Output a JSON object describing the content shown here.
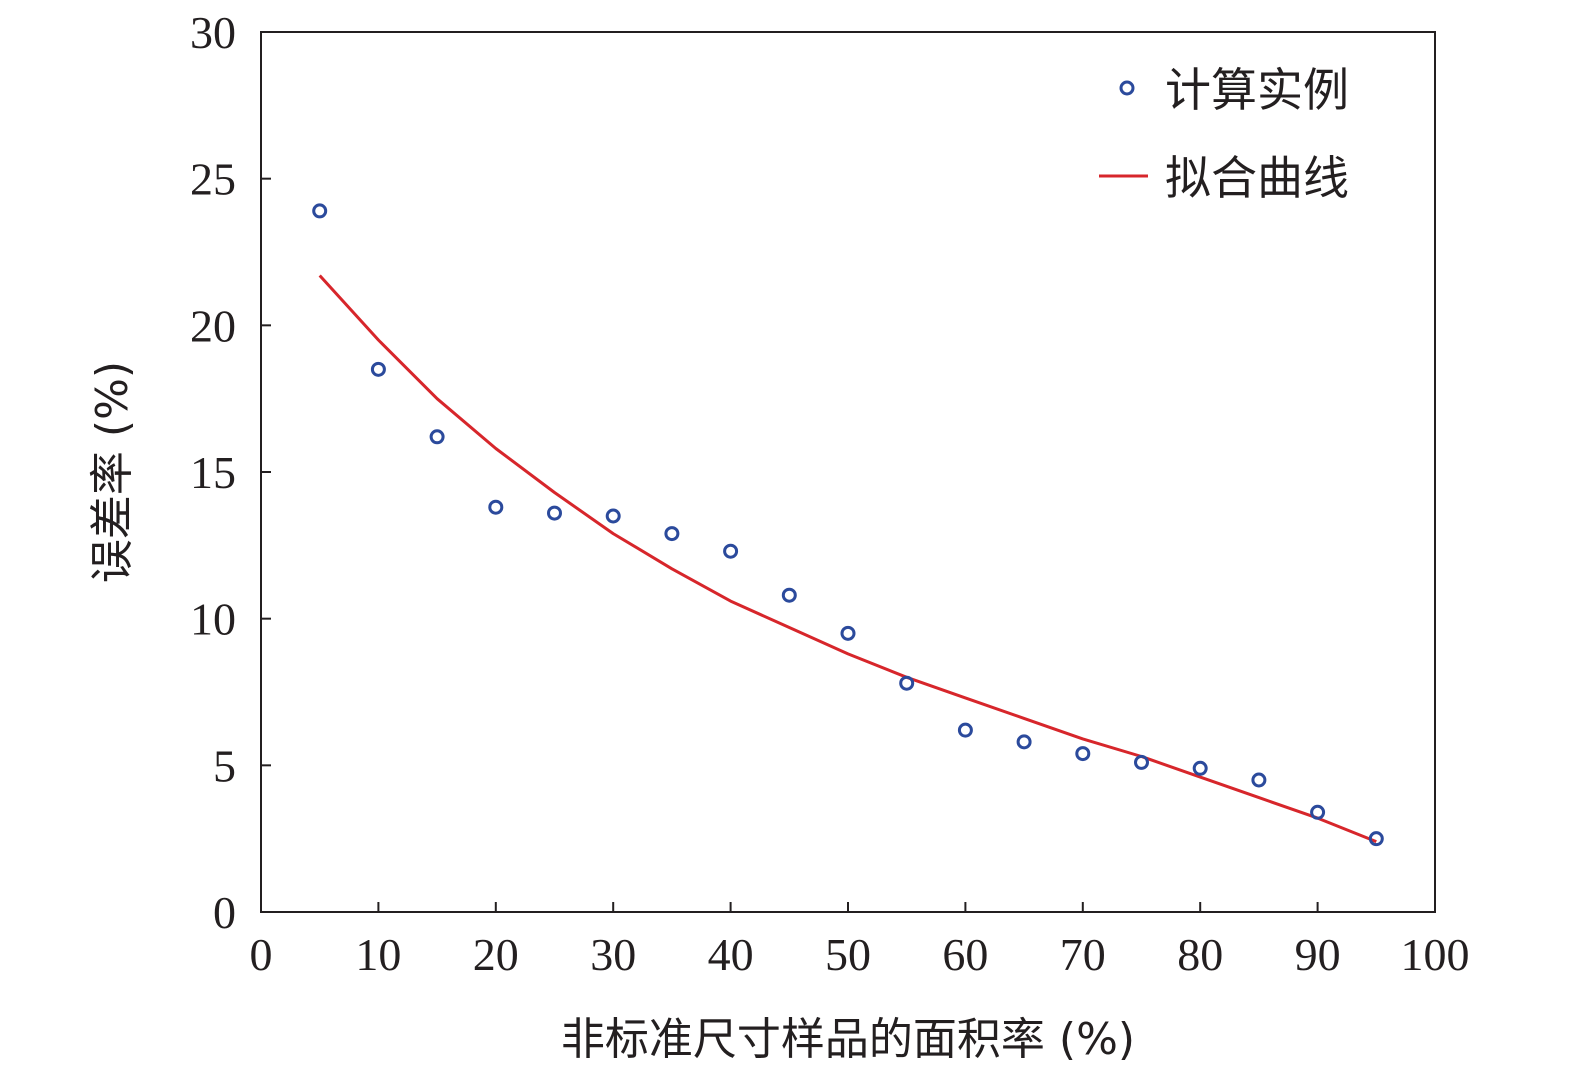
{
  "chart_data": {
    "type": "scatter",
    "title": "",
    "xlabel": "非标准尺寸样品的面积率 (%)",
    "ylabel": "误差率 (%)",
    "xlim": [
      0,
      100
    ],
    "ylim": [
      0,
      30
    ],
    "xticks": [
      "0",
      "10",
      "20",
      "30",
      "40",
      "50",
      "60",
      "70",
      "80",
      "90",
      "100"
    ],
    "yticks": [
      "0",
      "5",
      "10",
      "15",
      "20",
      "25",
      "30"
    ],
    "grid": false,
    "legend_position": "top-right",
    "series": [
      {
        "name": "计算实例",
        "kind": "scatter",
        "color": "#2b4a9c",
        "marker": "open-circle",
        "x": [
          5,
          10,
          15,
          20,
          25,
          30,
          35,
          40,
          45,
          50,
          55,
          60,
          65,
          70,
          75,
          80,
          85,
          90,
          95
        ],
        "y": [
          23.9,
          18.5,
          16.2,
          13.8,
          13.6,
          13.5,
          12.9,
          12.3,
          10.8,
          9.5,
          7.8,
          6.2,
          5.8,
          5.4,
          5.1,
          4.9,
          4.5,
          3.4,
          2.5
        ]
      },
      {
        "name": "拟合曲线",
        "kind": "line",
        "color": "#d7262b",
        "x": [
          5,
          10,
          15,
          20,
          25,
          30,
          35,
          40,
          45,
          50,
          55,
          60,
          65,
          70,
          75,
          80,
          85,
          90,
          95
        ],
        "y": [
          21.7,
          19.5,
          17.5,
          15.8,
          14.3,
          12.9,
          11.7,
          10.6,
          9.7,
          8.8,
          8.0,
          7.3,
          6.6,
          5.9,
          5.3,
          4.6,
          3.9,
          3.2,
          2.4
        ]
      }
    ]
  }
}
